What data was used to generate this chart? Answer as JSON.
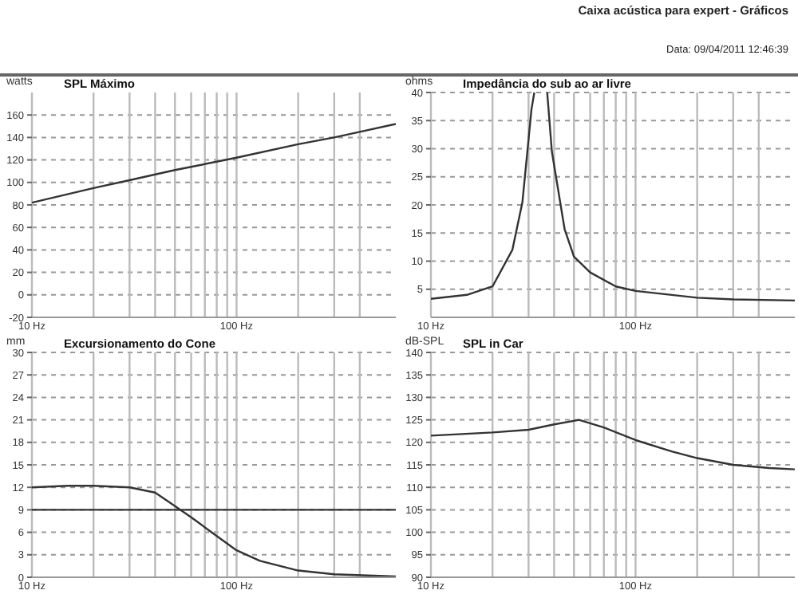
{
  "chart_data": [
    {
      "type": "line",
      "title": "SPL Máximo",
      "ylabel": "watts",
      "annotations": [
        "Caixa acústica para expert - Gráficos",
        "Data: 09/04/2011 12:46:39"
      ],
      "grid": true,
      "log": "x",
      "marker": "none",
      "line_style": "solid",
      "xlim": [
        10,
        600
      ],
      "xticks": [
        {
          "value": 10,
          "label": "10 Hz"
        },
        {
          "value": 20,
          "label": null
        },
        {
          "value": 30,
          "label": null
        },
        {
          "value": 40,
          "label": null
        },
        {
          "value": 50,
          "label": null
        },
        {
          "value": 60,
          "label": null
        },
        {
          "value": 70,
          "label": null
        },
        {
          "value": 80,
          "label": null
        },
        {
          "value": 90,
          "label": null
        },
        {
          "value": 100,
          "label": "100 Hz"
        },
        {
          "value": 200,
          "label": null
        },
        {
          "value": 300,
          "label": null
        },
        {
          "value": 400,
          "label": null
        }
      ],
      "ylim": [
        -20,
        180
      ],
      "yticks": [
        -20,
        0,
        20,
        40,
        60,
        80,
        100,
        120,
        140,
        160
      ],
      "series": [
        {
          "color": "#333333",
          "x": [
            10,
            20,
            30,
            50,
            100,
            200,
            300,
            400,
            600
          ],
          "values": [
            82,
            95,
            102,
            111,
            122,
            134,
            140,
            145,
            152
          ]
        }
      ]
    },
    {
      "type": "line",
      "title": "Impedância do sub ao ar livre",
      "ylabel": "ohms",
      "grid": true,
      "log": "x",
      "marker": "none",
      "line_style": "solid",
      "xlim": [
        10,
        600
      ],
      "xticks": [
        {
          "value": 10,
          "label": "10 Hz"
        },
        {
          "value": 20,
          "label": null
        },
        {
          "value": 30,
          "label": null
        },
        {
          "value": 40,
          "label": null
        },
        {
          "value": 50,
          "label": null
        },
        {
          "value": 60,
          "label": null
        },
        {
          "value": 70,
          "label": null
        },
        {
          "value": 80,
          "label": null
        },
        {
          "value": 90,
          "label": null
        },
        {
          "value": 100,
          "label": "100 Hz"
        },
        {
          "value": 200,
          "label": null
        },
        {
          "value": 300,
          "label": null
        },
        {
          "value": 400,
          "label": null
        }
      ],
      "ylim": [
        0,
        40
      ],
      "yticks": [
        5,
        10,
        15,
        20,
        25,
        30,
        35,
        40
      ],
      "series": [
        {
          "color": "#333333",
          "x": [
            10,
            15,
            20,
            25,
            28,
            31,
            32,
            34,
            37,
            39,
            45,
            50,
            60,
            80,
            100,
            200,
            300,
            600
          ],
          "values": [
            3.3,
            4,
            5.5,
            12,
            20.5,
            37,
            40,
            null,
            40,
            29.5,
            15.7,
            10.8,
            8,
            5.5,
            4.7,
            3.5,
            3.2,
            3
          ]
        }
      ]
    },
    {
      "type": "line",
      "title": "Excursionamento do Cone",
      "ylabel": "mm",
      "grid": true,
      "log": "x",
      "marker": "none",
      "line_style": "solid",
      "xlim": [
        10,
        600
      ],
      "xticks": [
        {
          "value": 10,
          "label": "10 Hz"
        },
        {
          "value": 20,
          "label": null
        },
        {
          "value": 30,
          "label": null
        },
        {
          "value": 40,
          "label": null
        },
        {
          "value": 50,
          "label": null
        },
        {
          "value": 60,
          "label": null
        },
        {
          "value": 70,
          "label": null
        },
        {
          "value": 80,
          "label": null
        },
        {
          "value": 90,
          "label": null
        },
        {
          "value": 100,
          "label": "100 Hz"
        },
        {
          "value": 200,
          "label": null
        },
        {
          "value": 300,
          "label": null
        },
        {
          "value": 400,
          "label": null
        }
      ],
      "ylim": [
        0,
        30
      ],
      "yticks": [
        0,
        3,
        6,
        9,
        12,
        15,
        18,
        21,
        24,
        27,
        30
      ],
      "ref_lines": [
        {
          "axis": "y",
          "value": 9,
          "color": "#333333"
        }
      ],
      "series": [
        {
          "color": "#333333",
          "x": [
            10,
            15,
            20,
            30,
            40,
            50,
            60,
            80,
            100,
            130,
            200,
            300,
            600
          ],
          "values": [
            12,
            12.2,
            12.2,
            12,
            11.3,
            9.5,
            8,
            5.5,
            3.6,
            2.2,
            0.9,
            0.4,
            0.1
          ]
        }
      ]
    },
    {
      "type": "line",
      "title": "SPL in Car",
      "ylabel": "dB-SPL",
      "grid": true,
      "log": "x",
      "marker": "none",
      "line_style": "solid",
      "xlim": [
        10,
        600
      ],
      "xticks": [
        {
          "value": 10,
          "label": "10 Hz"
        },
        {
          "value": 20,
          "label": null
        },
        {
          "value": 30,
          "label": null
        },
        {
          "value": 40,
          "label": null
        },
        {
          "value": 50,
          "label": null
        },
        {
          "value": 60,
          "label": null
        },
        {
          "value": 70,
          "label": null
        },
        {
          "value": 80,
          "label": null
        },
        {
          "value": 90,
          "label": null
        },
        {
          "value": 100,
          "label": "100 Hz"
        },
        {
          "value": 200,
          "label": null
        },
        {
          "value": 300,
          "label": null
        },
        {
          "value": 400,
          "label": null
        }
      ],
      "ylim": [
        90,
        140
      ],
      "yticks": [
        90,
        95,
        100,
        105,
        110,
        115,
        120,
        125,
        130,
        135,
        140
      ],
      "series": [
        {
          "color": "#333333",
          "x": [
            10,
            20,
            30,
            40,
            53,
            70,
            100,
            150,
            200,
            300,
            450,
            600
          ],
          "values": [
            121.5,
            122.2,
            122.8,
            124,
            125,
            123.3,
            120.5,
            118,
            116.5,
            115,
            114.3,
            114
          ]
        }
      ]
    }
  ]
}
